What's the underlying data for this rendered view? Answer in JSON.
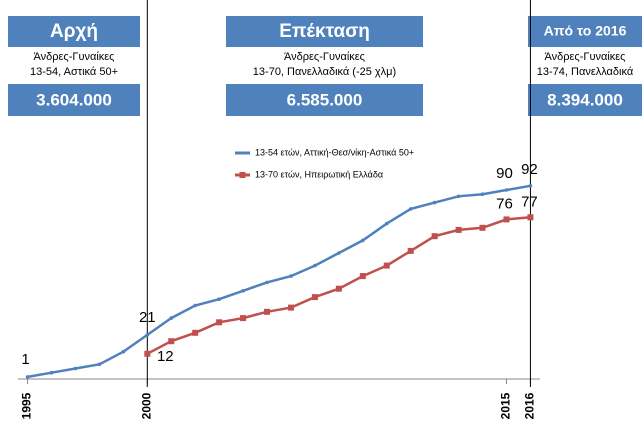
{
  "chart_data": {
    "type": "line",
    "panels": [
      {
        "title": "Αρχή",
        "subtitle": [
          "Άνδρες-Γυναίκες",
          "13-54, Αστικά 50+"
        ],
        "total": "3.604.000"
      },
      {
        "title": "Επέκταση",
        "subtitle": [
          "Άνδρες-Γυναίκες",
          "13-70, Πανελλαδικά (-25 χλμ)"
        ],
        "total": "6.585.000"
      },
      {
        "title": "Από το 2016",
        "subtitle": [
          "Άνδρες-Γυναίκες",
          "13-74, Πανελλαδικά"
        ],
        "total": "8.394.000"
      }
    ],
    "x": [
      1995,
      1996,
      1997,
      1998,
      1999,
      2000,
      2001,
      2002,
      2003,
      2004,
      2005,
      2006,
      2007,
      2008,
      2009,
      2010,
      2011,
      2012,
      2013,
      2014,
      2015,
      2016
    ],
    "series": [
      {
        "name": "13-54 ετών, Αττική-Θεσ/νίκη-Αστικά 50+",
        "color": "#4f81bd",
        "values": [
          1,
          3,
          5,
          7,
          13,
          21,
          29,
          35,
          38,
          42,
          46,
          49,
          54,
          60,
          66,
          74,
          81,
          84,
          87,
          88,
          90,
          92
        ]
      },
      {
        "name": "13-70 ετών, Ηπειρωτική Ελλάδα",
        "color": "#c0504d",
        "values": [
          null,
          null,
          null,
          null,
          null,
          12,
          18,
          22,
          27,
          29,
          32,
          34,
          39,
          43,
          49,
          54,
          61,
          68,
          71,
          72,
          76,
          77
        ]
      }
    ],
    "xlim": [
      1994.6,
      2016.4
    ],
    "xticks": [
      1995,
      2000,
      2015,
      2016
    ],
    "ylim": [
      0,
      100
    ]
  }
}
